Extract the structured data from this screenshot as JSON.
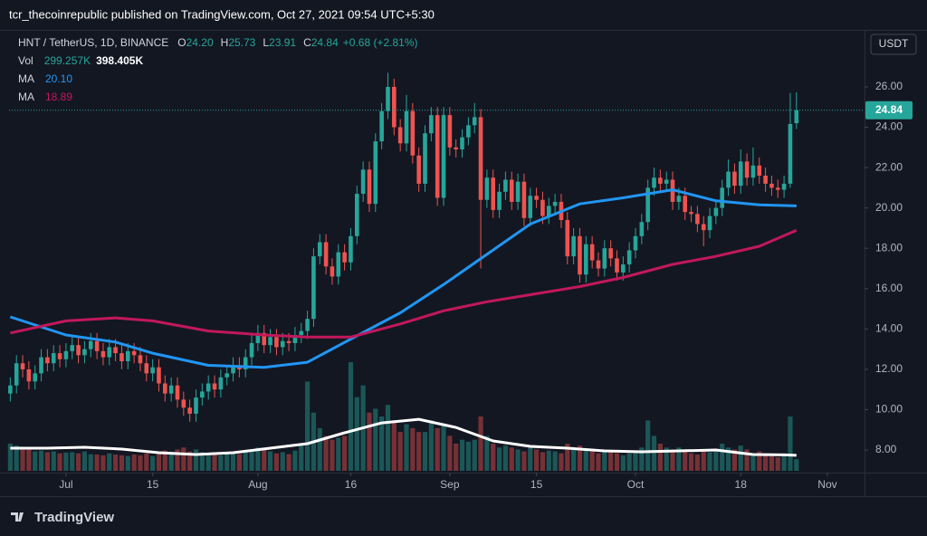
{
  "chart_data": {
    "type": "candlestick",
    "title": "tcr_thecoinrepublic published on TradingView.com, Oct 27, 2021 09:54 UTC+5:30",
    "legend": {
      "symbol": "HNT / TetherUS, 1D, BINANCE",
      "ohlc": [
        {
          "key": "O",
          "text": "24.20"
        },
        {
          "key": "H",
          "text": "25.73"
        },
        {
          "key": "L",
          "text": "23.91"
        },
        {
          "key": "C",
          "text": "24.84"
        }
      ],
      "change": "+0.68 (+2.81%)"
    },
    "y_unit": "USDT",
    "last_price_label": "24.84",
    "watermark": "TradingView",
    "up_color": "#26a69a",
    "down_color": "#ef5350",
    "xlim": [
      -9.2,
      129
    ],
    "xticks": [
      {
        "value": 0,
        "label": "Jul"
      },
      {
        "value": 14,
        "label": "15"
      },
      {
        "value": 31,
        "label": "Aug"
      },
      {
        "value": 46,
        "label": "16"
      },
      {
        "value": 62,
        "label": "Sep"
      },
      {
        "value": 76,
        "label": "15"
      },
      {
        "value": 92,
        "label": "Oct"
      },
      {
        "value": 109,
        "label": "18"
      },
      {
        "value": 123,
        "label": "Nov"
      }
    ],
    "ylim": [
      6.88,
      28.78
    ],
    "yticks": [
      {
        "value": 8,
        "label": "8.00"
      },
      {
        "value": 10,
        "label": "10.00"
      },
      {
        "value": 12,
        "label": "12.00"
      },
      {
        "value": 14,
        "label": "14.00"
      },
      {
        "value": 16,
        "label": "16.00"
      },
      {
        "value": 18,
        "label": "18.00"
      },
      {
        "value": 20,
        "label": "20.00"
      },
      {
        "value": 22,
        "label": "22.00"
      },
      {
        "value": 24,
        "label": "24.00"
      },
      {
        "value": 26,
        "label": "26.00"
      }
    ],
    "x": [
      -9,
      -8,
      -7,
      -6,
      -5,
      -4,
      -3,
      -2,
      -1,
      0,
      1,
      2,
      3,
      4,
      5,
      6,
      7,
      8,
      9,
      10,
      11,
      12,
      13,
      14,
      15,
      16,
      17,
      18,
      19,
      20,
      21,
      22,
      23,
      24,
      25,
      26,
      27,
      28,
      29,
      30,
      31,
      32,
      33,
      34,
      35,
      36,
      37,
      38,
      39,
      40,
      41,
      42,
      43,
      44,
      45,
      46,
      47,
      48,
      49,
      50,
      51,
      52,
      53,
      54,
      55,
      56,
      57,
      58,
      59,
      60,
      61,
      62,
      63,
      64,
      65,
      66,
      67,
      68,
      69,
      70,
      71,
      72,
      73,
      74,
      75,
      76,
      77,
      78,
      79,
      80,
      81,
      82,
      83,
      84,
      85,
      86,
      87,
      88,
      89,
      90,
      91,
      92,
      93,
      94,
      95,
      96,
      97,
      98,
      99,
      100,
      101,
      102,
      103,
      104,
      105,
      106,
      107,
      108,
      109,
      110,
      111,
      112,
      113,
      114,
      115,
      116,
      117,
      118
    ],
    "open": [
      10.8,
      11.2,
      12.3,
      12.0,
      11.4,
      11.8,
      12.6,
      12.3,
      12.8,
      12.5,
      12.9,
      13.2,
      12.7,
      13.0,
      13.4,
      12.9,
      12.6,
      13.1,
      12.8,
      12.4,
      12.9,
      12.7,
      12.3,
      11.8,
      12.1,
      11.3,
      10.8,
      11.2,
      10.5,
      10.1,
      9.8,
      10.6,
      10.9,
      11.3,
      11.0,
      11.6,
      11.8,
      12.2,
      12.0,
      12.6,
      13.3,
      13.8,
      13.2,
      13.6,
      13.1,
      13.4,
      13.3,
      13.7,
      13.9,
      14.5,
      17.6,
      18.3,
      17.1,
      16.6,
      17.8,
      17.3,
      18.6,
      20.7,
      21.9,
      20.2,
      23.3,
      24.8,
      26.0,
      24.0,
      23.2,
      24.8,
      22.6,
      21.2,
      23.7,
      24.6,
      20.5,
      24.6,
      23.0,
      22.9,
      23.5,
      24.1,
      24.5,
      20.4,
      21.5,
      19.9,
      20.8,
      21.4,
      20.3,
      21.3,
      19.5,
      20.6,
      20.4,
      19.6,
      20.1,
      20.3,
      19.4,
      17.6,
      18.6,
      16.7,
      18.2,
      17.4,
      17.0,
      18.0,
      17.5,
      16.8,
      17.2,
      17.9,
      18.6,
      19.3,
      21.0,
      21.5,
      21.2,
      21.4,
      20.3,
      20.6,
      19.8,
      19.7,
      19.2,
      18.9,
      19.6,
      20.0,
      21.0,
      21.8,
      21.1,
      22.3,
      21.5,
      22.1,
      21.6,
      21.2,
      21.0,
      20.9,
      21.2,
      24.2
    ],
    "high": [
      11.6,
      12.7,
      12.7,
      12.4,
      12.2,
      13.0,
      13.0,
      13.2,
      13.2,
      13.3,
      13.6,
      13.6,
      13.4,
      13.8,
      13.8,
      13.3,
      13.5,
      13.5,
      13.2,
      13.3,
      13.3,
      13.1,
      12.7,
      12.5,
      12.5,
      11.7,
      11.6,
      11.6,
      10.9,
      10.5,
      11.0,
      11.3,
      11.7,
      11.7,
      12.0,
      12.2,
      12.6,
      12.6,
      13.0,
      13.7,
      14.2,
      14.2,
      14.0,
      14.0,
      13.8,
      13.8,
      14.1,
      14.3,
      14.9,
      18.0,
      18.7,
      18.7,
      17.5,
      18.2,
      18.2,
      19.0,
      21.1,
      22.3,
      22.3,
      23.7,
      25.2,
      26.7,
      26.4,
      24.4,
      25.6,
      25.2,
      23.0,
      24.1,
      25.0,
      25.0,
      25.0,
      25.0,
      23.4,
      23.9,
      24.5,
      25.2,
      24.9,
      21.9,
      21.9,
      21.2,
      21.8,
      21.8,
      21.7,
      21.7,
      21.0,
      21.0,
      20.8,
      20.5,
      20.7,
      20.7,
      19.8,
      19.0,
      19.0,
      18.6,
      18.6,
      17.8,
      18.4,
      18.4,
      17.9,
      17.6,
      18.3,
      19.0,
      19.7,
      21.4,
      22.0,
      21.9,
      21.8,
      21.8,
      21.0,
      21.0,
      20.1,
      20.1,
      19.6,
      20.0,
      20.4,
      21.4,
      22.4,
      22.2,
      22.9,
      22.7,
      23.0,
      22.5,
      22.0,
      21.6,
      21.4,
      21.6,
      25.7,
      25.73
    ],
    "low": [
      10.4,
      10.8,
      11.6,
      11.0,
      11.0,
      11.4,
      11.9,
      11.9,
      12.1,
      12.1,
      12.5,
      12.3,
      12.3,
      12.6,
      12.5,
      12.2,
      12.2,
      12.4,
      12.0,
      12.0,
      12.3,
      11.9,
      11.4,
      11.4,
      10.9,
      10.4,
      10.4,
      10.1,
      9.7,
      9.4,
      9.4,
      10.2,
      10.5,
      10.6,
      10.6,
      11.2,
      11.4,
      11.6,
      11.6,
      12.2,
      12.9,
      12.8,
      12.8,
      12.7,
      12.7,
      12.9,
      12.9,
      13.3,
      13.5,
      14.1,
      17.2,
      16.7,
      16.2,
      16.2,
      16.9,
      16.9,
      18.2,
      20.3,
      19.8,
      19.8,
      22.9,
      24.4,
      23.6,
      22.8,
      22.8,
      22.2,
      20.8,
      20.8,
      23.3,
      20.1,
      20.1,
      22.6,
      22.5,
      22.5,
      23.1,
      23.7,
      17.0,
      20.0,
      19.5,
      19.5,
      20.4,
      19.9,
      19.9,
      19.1,
      19.1,
      20.0,
      19.2,
      19.2,
      19.7,
      19.0,
      17.2,
      17.2,
      16.3,
      16.3,
      17.0,
      16.6,
      16.6,
      17.1,
      16.4,
      16.4,
      16.8,
      17.5,
      18.2,
      18.9,
      20.6,
      20.8,
      20.8,
      19.9,
      19.9,
      19.4,
      19.3,
      18.8,
      18.1,
      18.5,
      19.2,
      19.6,
      20.6,
      20.7,
      20.7,
      21.1,
      21.1,
      21.2,
      20.8,
      20.6,
      20.5,
      20.5,
      21.0,
      23.91
    ],
    "close": [
      11.2,
      12.3,
      12.0,
      11.4,
      11.8,
      12.6,
      12.3,
      12.8,
      12.5,
      12.9,
      13.2,
      12.7,
      13.0,
      13.4,
      12.9,
      12.6,
      13.1,
      12.8,
      12.4,
      12.9,
      12.7,
      12.3,
      11.8,
      12.1,
      11.3,
      10.8,
      11.2,
      10.5,
      10.1,
      9.8,
      10.6,
      10.9,
      11.3,
      11.0,
      11.6,
      11.8,
      12.2,
      12.0,
      12.6,
      13.3,
      13.8,
      13.2,
      13.6,
      13.1,
      13.4,
      13.3,
      13.7,
      13.9,
      14.5,
      17.6,
      18.3,
      17.1,
      16.6,
      17.8,
      17.3,
      18.6,
      20.7,
      21.9,
      20.2,
      23.3,
      24.8,
      26.0,
      24.0,
      23.2,
      24.8,
      22.6,
      21.2,
      23.7,
      24.6,
      20.5,
      24.6,
      23.0,
      22.9,
      23.5,
      24.1,
      24.5,
      20.4,
      21.5,
      19.9,
      20.8,
      21.4,
      20.3,
      21.3,
      19.5,
      20.6,
      20.4,
      19.6,
      20.1,
      20.3,
      19.4,
      17.6,
      18.6,
      16.7,
      18.2,
      17.4,
      17.0,
      18.0,
      17.5,
      16.8,
      17.2,
      17.9,
      18.6,
      19.3,
      21.0,
      21.5,
      21.2,
      21.4,
      20.3,
      20.6,
      19.8,
      19.7,
      19.2,
      18.9,
      19.6,
      20.0,
      21.0,
      21.8,
      21.1,
      22.3,
      21.5,
      22.1,
      21.6,
      21.2,
      21.0,
      20.9,
      21.2,
      24.16,
      24.84
    ],
    "volume": {
      "name": "Vol",
      "value_label": "299.257K",
      "values": [
        700,
        650,
        600,
        550,
        500,
        520,
        480,
        500,
        450,
        470,
        480,
        450,
        500,
        430,
        420,
        400,
        450,
        420,
        400,
        380,
        420,
        400,
        450,
        380,
        500,
        520,
        480,
        550,
        600,
        500,
        550,
        480,
        450,
        420,
        400,
        450,
        480,
        430,
        500,
        550,
        600,
        550,
        500,
        450,
        480,
        430,
        520,
        700,
        2300,
        1500,
        1100,
        900,
        800,
        850,
        900,
        2800,
        1900,
        2200,
        1500,
        1600,
        1400,
        1700,
        1300,
        1000,
        1200,
        1100,
        1000,
        1000,
        1300,
        1100,
        1200,
        900,
        700,
        800,
        750,
        800,
        1400,
        900,
        700,
        600,
        650,
        600,
        550,
        500,
        600,
        550,
        480,
        520,
        500,
        450,
        700,
        600,
        650,
        550,
        500,
        450,
        550,
        500,
        450,
        400,
        450,
        500,
        600,
        1300,
        900,
        700,
        600,
        550,
        600,
        500,
        450,
        420,
        500,
        480,
        500,
        700,
        600,
        550,
        650,
        550,
        450,
        500,
        420,
        380,
        350,
        450,
        1400,
        299.257
      ],
      "ma": {
        "color": "#ffffff",
        "value_label": "398.405K",
        "x": [
          -9,
          -3,
          3,
          9,
          15,
          21,
          27,
          33,
          39,
          45,
          51,
          57,
          63,
          69,
          75,
          81,
          87,
          93,
          99,
          105,
          111,
          116,
          118
        ],
        "values": [
          583,
          583,
          606,
          559,
          466,
          419,
          466,
          583,
          699,
          979,
          1235,
          1328,
          1118,
          769,
          629,
          583,
          513,
          489,
          513,
          536,
          419,
          410,
          398.405
        ]
      }
    },
    "ma": [
      {
        "name": "MA",
        "color": "#2196f3",
        "value_label": "20.10",
        "x": [
          -9,
          0,
          8,
          14,
          23,
          32,
          39,
          46,
          54,
          61,
          68,
          75,
          83,
          90,
          98,
          105,
          112,
          118
        ],
        "values": [
          14.6,
          13.7,
          13.35,
          12.8,
          12.2,
          12.1,
          12.35,
          13.5,
          14.8,
          16.2,
          17.7,
          19.2,
          20.2,
          20.5,
          20.9,
          20.35,
          20.15,
          20.1
        ]
      },
      {
        "name": "MA",
        "color": "#c2185b",
        "value_label": "18.89",
        "x": [
          -9,
          0,
          8,
          14,
          23,
          32,
          39,
          46,
          54,
          61,
          68,
          75,
          83,
          90,
          98,
          105,
          112,
          118
        ],
        "values": [
          13.8,
          14.4,
          14.55,
          14.4,
          13.9,
          13.7,
          13.6,
          13.6,
          14.25,
          14.9,
          15.35,
          15.7,
          16.1,
          16.55,
          17.2,
          17.6,
          18.1,
          18.89
        ]
      }
    ]
  }
}
